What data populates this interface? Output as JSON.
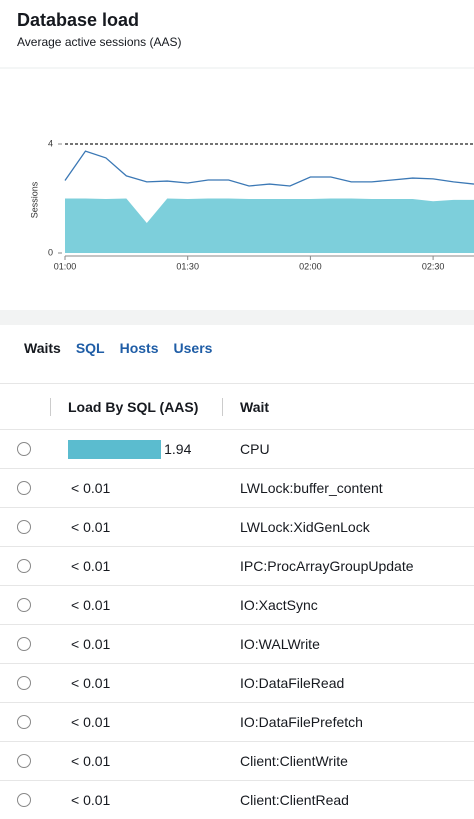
{
  "header": {
    "title": "Database load",
    "subtitle": "Average active sessions (AAS)"
  },
  "chart_data": {
    "type": "area-line",
    "y_label": "Sessions",
    "x": [
      0,
      5,
      10,
      15,
      20,
      25,
      30,
      35,
      40,
      45,
      50,
      55,
      60,
      65,
      70,
      75,
      80,
      85,
      90,
      95,
      100
    ],
    "xlim": [
      0,
      100
    ],
    "xticks": [
      {
        "value": 0,
        "label": "01:00"
      },
      {
        "value": 30,
        "label": "01:30"
      },
      {
        "value": 60,
        "label": "02:00"
      },
      {
        "value": 90,
        "label": "02:30"
      }
    ],
    "ylim": [
      0,
      6
    ],
    "yticks": [
      0,
      4
    ],
    "threshold": 4,
    "series": [
      {
        "kind": "area",
        "color": "#7dcfdb",
        "values": [
          2.0,
          2.0,
          1.98,
          2.0,
          1.1,
          2.0,
          1.98,
          2.0,
          2.0,
          1.98,
          1.98,
          1.98,
          1.98,
          2.0,
          2.0,
          1.98,
          1.98,
          1.98,
          1.9,
          1.95,
          1.95
        ]
      },
      {
        "kind": "line",
        "color": "#3b78b5",
        "values": [
          2.66,
          3.74,
          3.49,
          2.83,
          2.61,
          2.64,
          2.57,
          2.68,
          2.68,
          2.46,
          2.53,
          2.46,
          2.79,
          2.79,
          2.61,
          2.61,
          2.68,
          2.75,
          2.72,
          2.61,
          2.53
        ]
      }
    ]
  },
  "tabs": [
    "Waits",
    "SQL",
    "Hosts",
    "Users"
  ],
  "table": {
    "columns": [
      "Load By SQL (AAS)",
      "Wait"
    ],
    "bar_color": "#5bbccf",
    "rows": [
      [
        1.94,
        "CPU"
      ],
      [
        "< 0.01",
        "LWLock:buffer_content"
      ],
      [
        "< 0.01",
        "LWLock:XidGenLock"
      ],
      [
        "< 0.01",
        "IPC:ProcArrayGroupUpdate"
      ],
      [
        "< 0.01",
        "IO:XactSync"
      ],
      [
        "< 0.01",
        "IO:WALWrite"
      ],
      [
        "< 0.01",
        "IO:DataFileRead"
      ],
      [
        "< 0.01",
        "IO:DataFilePrefetch"
      ],
      [
        "< 0.01",
        "Client:ClientWrite"
      ],
      [
        "< 0.01",
        "Client:ClientRead"
      ]
    ]
  }
}
